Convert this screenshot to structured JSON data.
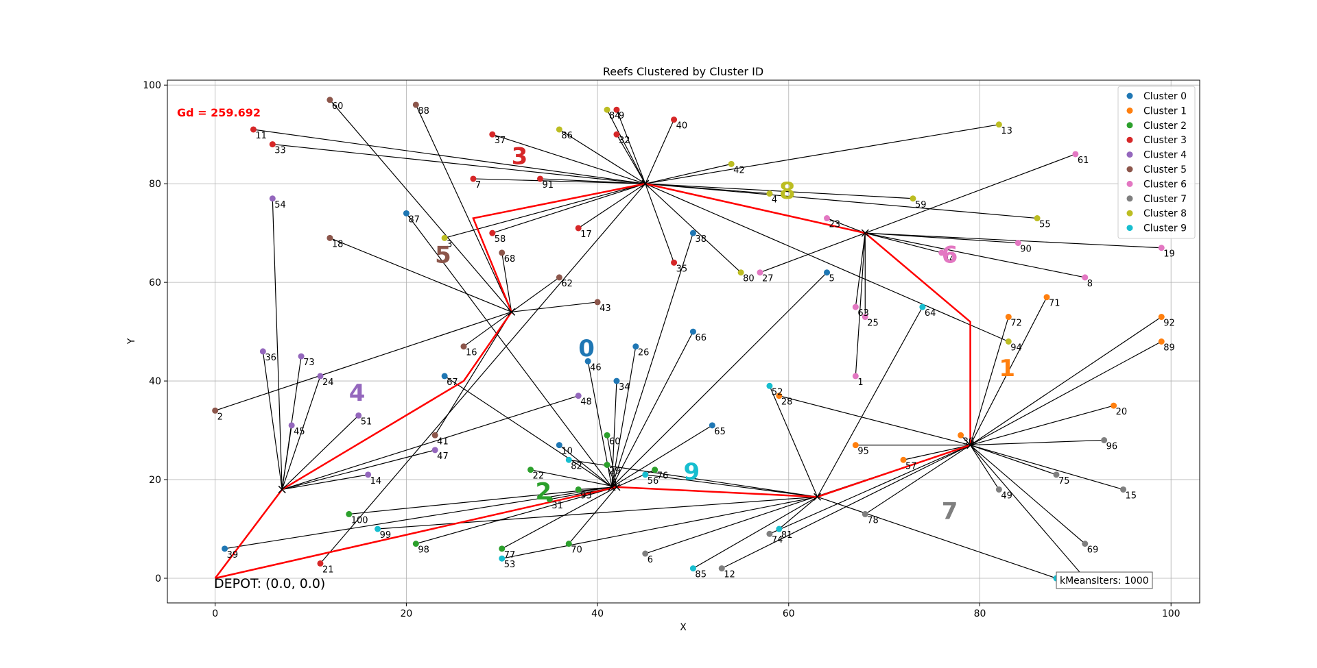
{
  "chart_data": {
    "type": "scatter",
    "title": "Reefs Clustered by Cluster ID",
    "xlabel": "X",
    "ylabel": "Y",
    "xlim": [
      -5,
      103
    ],
    "ylim": [
      -5,
      101
    ],
    "xticks": [
      0,
      20,
      40,
      60,
      80,
      100
    ],
    "yticks": [
      0,
      20,
      40,
      60,
      80,
      100
    ],
    "grid": true,
    "legend_position": "top-right",
    "gd_text": "Gd = 259.692",
    "depot_text": "DEPOT: (0.0, 0.0)",
    "kmeans_text": "kMeansIters: 1000",
    "depot": [
      0,
      0
    ],
    "route": [
      [
        0,
        0
      ],
      [
        7,
        18
      ],
      [
        26,
        40
      ],
      [
        31,
        54
      ],
      [
        27,
        73
      ],
      [
        45,
        80
      ],
      [
        68,
        70
      ],
      [
        79,
        52
      ],
      [
        79,
        27
      ],
      [
        63,
        16.5
      ],
      [
        42,
        18.5
      ],
      [
        0,
        0
      ]
    ],
    "series": [
      {
        "name": "Cluster 0",
        "color": "#1f77b4",
        "center": [
          41.5,
          18.5
        ],
        "label": "0",
        "label_pos": [
          38,
          45
        ],
        "points": [
          {
            "id": "10",
            "x": 36,
            "y": 27
          },
          {
            "id": "26",
            "x": 44,
            "y": 47
          },
          {
            "id": "46",
            "x": 39,
            "y": 44
          },
          {
            "id": "34",
            "x": 42,
            "y": 40
          },
          {
            "id": "67",
            "x": 24,
            "y": 41
          },
          {
            "id": "87",
            "x": 20,
            "y": 74
          },
          {
            "id": "38",
            "x": 50,
            "y": 70
          },
          {
            "id": "66",
            "x": 50,
            "y": 50
          },
          {
            "id": "5",
            "x": 64,
            "y": 62
          },
          {
            "id": "65",
            "x": 52,
            "y": 31
          },
          {
            "id": "39",
            "x": 1,
            "y": 6
          }
        ]
      },
      {
        "name": "Cluster 1",
        "color": "#ff7f0e",
        "center": [
          79,
          27
        ],
        "label": "1",
        "label_pos": [
          82,
          41
        ],
        "points": [
          {
            "id": "72",
            "x": 83,
            "y": 53
          },
          {
            "id": "71",
            "x": 87,
            "y": 57
          },
          {
            "id": "92",
            "x": 99,
            "y": 53
          },
          {
            "id": "89",
            "x": 99,
            "y": 48
          },
          {
            "id": "20",
            "x": 94,
            "y": 35
          },
          {
            "id": "30",
            "x": 78,
            "y": 29
          },
          {
            "id": "57",
            "x": 72,
            "y": 24
          },
          {
            "id": "95",
            "x": 67,
            "y": 27
          },
          {
            "id": "28",
            "x": 59,
            "y": 37
          }
        ]
      },
      {
        "name": "Cluster 2",
        "color": "#2ca02c",
        "center": [
          42,
          18.5
        ],
        "label": "2",
        "label_pos": [
          33.5,
          16
        ],
        "points": [
          {
            "id": "60",
            "x": 41,
            "y": 29
          },
          {
            "id": "29",
            "x": 41,
            "y": 23
          },
          {
            "id": "76",
            "x": 46,
            "y": 22
          },
          {
            "id": "93",
            "x": 38,
            "y": 18
          },
          {
            "id": "22",
            "x": 33,
            "y": 22
          },
          {
            "id": "31",
            "x": 35,
            "y": 16
          },
          {
            "id": "70",
            "x": 37,
            "y": 7
          },
          {
            "id": "77",
            "x": 30,
            "y": 6
          },
          {
            "id": "98",
            "x": 21,
            "y": 7
          },
          {
            "id": "100",
            "x": 14,
            "y": 13
          }
        ]
      },
      {
        "name": "Cluster 3",
        "color": "#d62728",
        "center": [
          45,
          80
        ],
        "label": "3",
        "label_pos": [
          31,
          84
        ],
        "points": [
          {
            "id": "11",
            "x": 4,
            "y": 91
          },
          {
            "id": "33",
            "x": 6,
            "y": 88
          },
          {
            "id": "37",
            "x": 29,
            "y": 90
          },
          {
            "id": "7",
            "x": 27,
            "y": 81
          },
          {
            "id": "91",
            "x": 34,
            "y": 81
          },
          {
            "id": "58",
            "x": 29,
            "y": 70
          },
          {
            "id": "17",
            "x": 38,
            "y": 71
          },
          {
            "id": "35",
            "x": 48,
            "y": 64
          },
          {
            "id": "40",
            "x": 48,
            "y": 93
          },
          {
            "id": "32",
            "x": 42,
            "y": 90
          },
          {
            "id": "9",
            "x": 42,
            "y": 95
          },
          {
            "id": "21",
            "x": 11,
            "y": 3
          }
        ]
      },
      {
        "name": "Cluster 4",
        "color": "#9467bd",
        "center": [
          7,
          18
        ],
        "label": "4",
        "label_pos": [
          14,
          36
        ],
        "points": [
          {
            "id": "54",
            "x": 6,
            "y": 77
          },
          {
            "id": "36",
            "x": 5,
            "y": 46
          },
          {
            "id": "73",
            "x": 9,
            "y": 45
          },
          {
            "id": "24",
            "x": 11,
            "y": 41
          },
          {
            "id": "45",
            "x": 8,
            "y": 31
          },
          {
            "id": "51",
            "x": 15,
            "y": 33
          },
          {
            "id": "47",
            "x": 23,
            "y": 26
          },
          {
            "id": "14",
            "x": 16,
            "y": 21
          },
          {
            "id": "48",
            "x": 38,
            "y": 37
          }
        ]
      },
      {
        "name": "Cluster 5",
        "color": "#8c564b",
        "center": [
          31,
          54
        ],
        "label": "5",
        "label_pos": [
          23,
          64
        ],
        "points": [
          {
            "id": "60",
            "x": 12,
            "y": 97
          },
          {
            "id": "88",
            "x": 21,
            "y": 96
          },
          {
            "id": "18",
            "x": 12,
            "y": 69
          },
          {
            "id": "2",
            "x": 0,
            "y": 34
          },
          {
            "id": "68",
            "x": 30,
            "y": 66
          },
          {
            "id": "62",
            "x": 36,
            "y": 61
          },
          {
            "id": "43",
            "x": 40,
            "y": 56
          },
          {
            "id": "16",
            "x": 26,
            "y": 47
          },
          {
            "id": "41",
            "x": 23,
            "y": 29
          }
        ]
      },
      {
        "name": "Cluster 6",
        "color": "#e377c2",
        "center": [
          68,
          70
        ],
        "label": "6",
        "label_pos": [
          76,
          64
        ],
        "points": [
          {
            "id": "23",
            "x": 64,
            "y": 73
          },
          {
            "id": "27",
            "x": 57,
            "y": 62
          },
          {
            "id": "63",
            "x": 67,
            "y": 55
          },
          {
            "id": "25",
            "x": 68,
            "y": 53
          },
          {
            "id": "1",
            "x": 67,
            "y": 41
          },
          {
            "id": "44",
            "x": 76,
            "y": 66
          },
          {
            "id": "90",
            "x": 84,
            "y": 68
          },
          {
            "id": "61",
            "x": 90,
            "y": 86
          },
          {
            "id": "19",
            "x": 99,
            "y": 67
          },
          {
            "id": "8",
            "x": 91,
            "y": 61
          }
        ]
      },
      {
        "name": "Cluster 7",
        "color": "#7f7f7f",
        "center": [
          79,
          27
        ],
        "label": "7",
        "label_pos": [
          76,
          12
        ],
        "points": [
          {
            "id": "6",
            "x": 45,
            "y": 5
          },
          {
            "id": "12",
            "x": 53,
            "y": 2
          },
          {
            "id": "74",
            "x": 58,
            "y": 9
          },
          {
            "id": "78",
            "x": 68,
            "y": 13
          },
          {
            "id": "49",
            "x": 82,
            "y": 18
          },
          {
            "id": "75",
            "x": 88,
            "y": 21
          },
          {
            "id": "96",
            "x": 93,
            "y": 28
          },
          {
            "id": "15",
            "x": 95,
            "y": 18
          },
          {
            "id": "69",
            "x": 91,
            "y": 7
          },
          {
            "id": "97",
            "x": 91,
            "y": 0
          }
        ]
      },
      {
        "name": "Cluster 8",
        "color": "#bcbd22",
        "center": [
          45,
          80
        ],
        "label": "8",
        "label_pos": [
          59,
          77
        ],
        "points": [
          {
            "id": "84",
            "x": 41,
            "y": 95
          },
          {
            "id": "86",
            "x": 36,
            "y": 91
          },
          {
            "id": "42",
            "x": 54,
            "y": 84
          },
          {
            "id": "4",
            "x": 58,
            "y": 78
          },
          {
            "id": "13",
            "x": 82,
            "y": 92
          },
          {
            "id": "59",
            "x": 73,
            "y": 77
          },
          {
            "id": "55",
            "x": 86,
            "y": 73
          },
          {
            "id": "80",
            "x": 55,
            "y": 62
          },
          {
            "id": "3",
            "x": 24,
            "y": 69
          },
          {
            "id": "94",
            "x": 83,
            "y": 48
          }
        ]
      },
      {
        "name": "Cluster 9",
        "color": "#17becf",
        "center": [
          63,
          16.5
        ],
        "label": "9",
        "label_pos": [
          49,
          20
        ],
        "points": [
          {
            "id": "64",
            "x": 74,
            "y": 55
          },
          {
            "id": "52",
            "x": 58,
            "y": 39
          },
          {
            "id": "82",
            "x": 37,
            "y": 24
          },
          {
            "id": "56",
            "x": 45,
            "y": 21
          },
          {
            "id": "81",
            "x": 59,
            "y": 10
          },
          {
            "id": "85",
            "x": 50,
            "y": 2
          },
          {
            "id": "99",
            "x": 17,
            "y": 10
          },
          {
            "id": "53",
            "x": 30,
            "y": 4
          },
          {
            "id": "9",
            "x": 88,
            "y": 0
          }
        ]
      }
    ]
  }
}
